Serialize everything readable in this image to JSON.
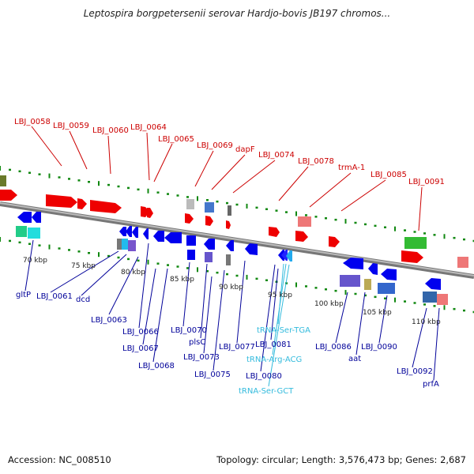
{
  "title": "Leptospira borgpetersenii serovar Hardjo-bovis JB197 chromos...",
  "footer": {
    "accession": "Accession: NC_008510",
    "stats": "Topology: circular; Length: 3,576,473 bp; Genes: 2,687"
  },
  "colors": {
    "forward_gene": "#ff0000",
    "reverse_gene": "#0000ee",
    "label_forward": "#cc0000",
    "label_reverse": "#000099",
    "label_rna": "#33bbdd",
    "backbone": "#888888",
    "tick": "#118811"
  },
  "scale_labels": [
    "70 kbp",
    "75 kbp",
    "80 kbp",
    "85 kbp",
    "90 kbp",
    "95 kbp",
    "100 kbp",
    "105 kbp",
    "110 kbp"
  ],
  "top_labels": [
    "LBJ_0058",
    "LBJ_0059",
    "LBJ_0060",
    "LBJ_0064",
    "LBJ_0065",
    "LBJ_0069",
    "dapF",
    "LBJ_0074",
    "LBJ_0078",
    "trmA-1",
    "LBJ_0085",
    "LBJ_0091"
  ],
  "bottom_labels": [
    "gltP",
    "LBJ_0061",
    "dcd",
    "LBJ_0063",
    "LBJ_0066",
    "LBJ_0067",
    "LBJ_0068",
    "LBJ_0070",
    "plsC",
    "LBJ_0073",
    "LBJ_0075",
    "LBJ_0077",
    "LBJ_0080",
    "LBJ_0081",
    "LBJ_0086",
    "aat",
    "LBJ_0090",
    "LBJ_0092",
    "prfA"
  ],
  "rna_labels": [
    "tRNA-Ser-TGA",
    "tRNA-Arg-ACG",
    "tRNA-Ser-GCT"
  ]
}
